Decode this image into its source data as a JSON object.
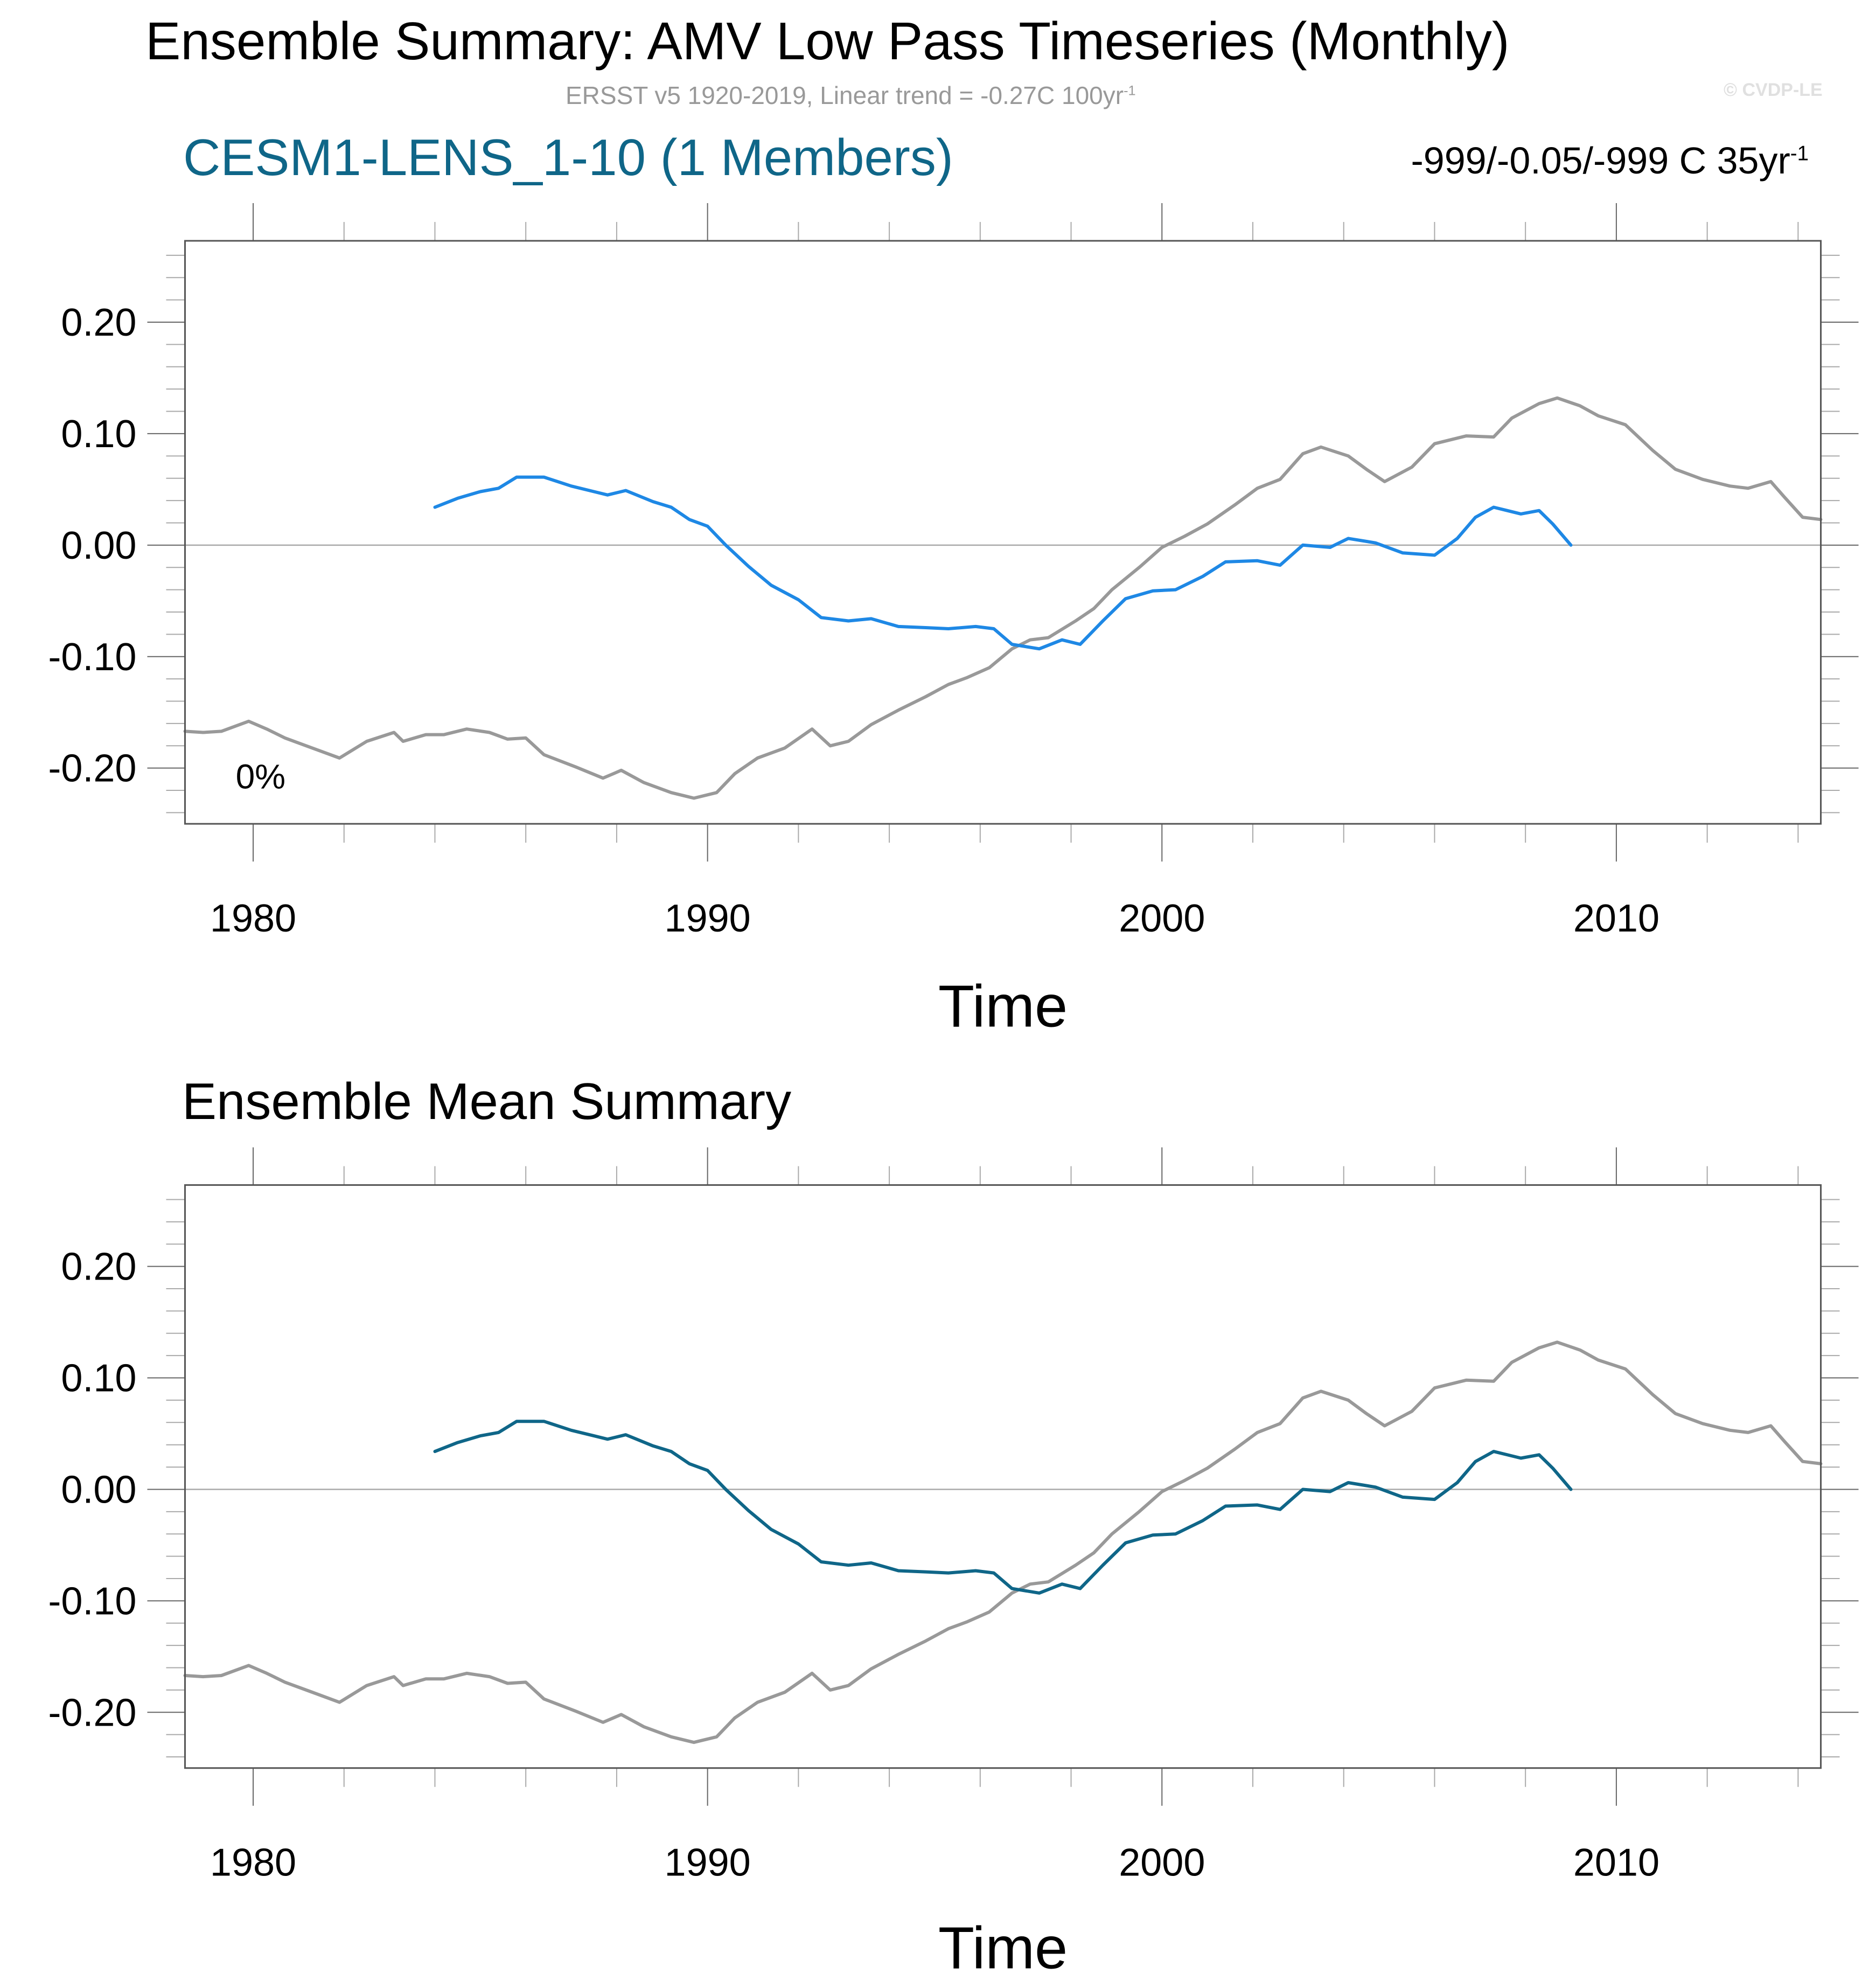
{
  "header": {
    "title": "Ensemble Summary: AMV Low Pass Timeseries (Monthly)",
    "subtitle_main": "ERSST v5 1920-2019, Linear trend = -0.27C 100yr",
    "subtitle_sup": "-1",
    "copyright": "© CVDP-LE"
  },
  "panels": {
    "top": {
      "title": "CESM1-LENS_1-10 (1 Members)",
      "stats_main": "-999/-0.05/-999 C 35yr",
      "stats_sup": "-1",
      "percent_label": "0%"
    },
    "bottom": {
      "title": "Ensemble Mean Summary"
    }
  },
  "colors": {
    "observations": "#999999",
    "model_top": "#1e88e5",
    "model_bottom": "#0f6688",
    "model_title": "#0f6688",
    "zero_line": "#aaaaaa",
    "axis": "#555555"
  },
  "chart_data": [
    {
      "type": "line",
      "title": "CESM1-LENS_1-10 (1 Members)",
      "xlabel": "Time",
      "ylabel": "",
      "xlim": [
        1978.5,
        2014.5
      ],
      "ylim": [
        -0.25,
        0.273
      ],
      "xticks": [
        1980,
        1990,
        2000,
        2010
      ],
      "xtick_labels": [
        "1980",
        "1990",
        "2000",
        "2010"
      ],
      "yticks": [
        0.2,
        0.1,
        0.0,
        -0.1,
        -0.2
      ],
      "ytick_labels": [
        "0.20",
        "0.10",
        "0.00",
        "-0.10",
        "-0.20"
      ],
      "reference_line": 0.0,
      "annotation": "0%",
      "series": [
        {
          "name": "ERSST v5 (observations)",
          "color": "#999999",
          "x": [
            1978.5,
            1978.9,
            1979.3,
            1979.9,
            1980.3,
            1980.7,
            1981.3,
            1981.9,
            1982.5,
            1983.1,
            1983.3,
            1983.8,
            1984.2,
            1984.7,
            1985.2,
            1985.6,
            1986.0,
            1986.4,
            1987.1,
            1987.7,
            1988.1,
            1988.6,
            1989.2,
            1989.7,
            1990.2,
            1990.6,
            1991.1,
            1991.7,
            1992.3,
            1992.7,
            1993.1,
            1993.6,
            1994.2,
            1994.8,
            1995.3,
            1995.7,
            1996.2,
            1996.7,
            1997.1,
            1997.5,
            1998.1,
            1998.5,
            1998.9,
            1999.5,
            2000.0,
            2000.5,
            2001.0,
            2001.6,
            2002.1,
            2002.6,
            2003.1,
            2003.5,
            2004.1,
            2004.5,
            2004.9,
            2005.5,
            2006.0,
            2006.7,
            2007.3,
            2007.7,
            2008.3,
            2008.7,
            2009.2,
            2009.6,
            2010.2,
            2010.8,
            2011.3,
            2011.9,
            2012.5,
            2012.9,
            2013.4,
            2013.7,
            2014.1,
            2014.5
          ],
          "y": [
            -0.167,
            -0.168,
            -0.167,
            -0.158,
            -0.165,
            -0.173,
            -0.182,
            -0.191,
            -0.176,
            -0.168,
            -0.176,
            -0.17,
            -0.17,
            -0.165,
            -0.168,
            -0.174,
            -0.173,
            -0.188,
            -0.199,
            -0.209,
            -0.202,
            -0.213,
            -0.222,
            -0.227,
            -0.222,
            -0.205,
            -0.191,
            -0.182,
            -0.165,
            -0.18,
            -0.176,
            -0.161,
            -0.148,
            -0.136,
            -0.125,
            -0.119,
            -0.11,
            -0.093,
            -0.085,
            -0.083,
            -0.068,
            -0.057,
            -0.04,
            -0.02,
            -0.002,
            0.008,
            0.019,
            0.036,
            0.051,
            0.059,
            0.082,
            0.088,
            0.08,
            0.068,
            0.057,
            0.07,
            0.091,
            0.098,
            0.097,
            0.114,
            0.127,
            0.132,
            0.125,
            0.116,
            0.108,
            0.085,
            0.068,
            0.059,
            0.053,
            0.051,
            0.057,
            0.043,
            0.025,
            0.023
          ]
        },
        {
          "name": "CESM1-LENS_1-10",
          "color": "#1e88e5",
          "x": [
            1984.0,
            1984.5,
            1985.0,
            1985.4,
            1985.8,
            1986.4,
            1987.0,
            1987.5,
            1987.8,
            1988.2,
            1988.8,
            1989.2,
            1989.6,
            1990.0,
            1990.4,
            1990.9,
            1991.4,
            1992.0,
            1992.5,
            1993.1,
            1993.6,
            1994.2,
            1994.8,
            1995.3,
            1995.9,
            1996.3,
            1996.7,
            1997.3,
            1997.8,
            1998.2,
            1998.7,
            1999.2,
            1999.8,
            2000.3,
            2000.9,
            2001.4,
            2002.1,
            2002.6,
            2003.1,
            2003.7,
            2004.1,
            2004.7,
            2005.3,
            2006.0,
            2006.5,
            2006.9,
            2007.3,
            2007.9,
            2008.3,
            2008.6,
            2009.0
          ],
          "y": [
            0.034,
            0.042,
            0.048,
            0.051,
            0.061,
            0.061,
            0.053,
            0.048,
            0.045,
            0.049,
            0.039,
            0.034,
            0.023,
            0.017,
            0.0,
            -0.019,
            -0.036,
            -0.049,
            -0.065,
            -0.068,
            -0.066,
            -0.073,
            -0.074,
            -0.075,
            -0.073,
            -0.075,
            -0.089,
            -0.093,
            -0.085,
            -0.089,
            -0.068,
            -0.048,
            -0.041,
            -0.04,
            -0.028,
            -0.015,
            -0.014,
            -0.018,
            0.0,
            -0.002,
            0.006,
            0.002,
            -0.007,
            -0.009,
            0.006,
            0.025,
            0.034,
            0.028,
            0.031,
            0.019,
            0.0
          ]
        }
      ]
    },
    {
      "type": "line",
      "title": "Ensemble Mean Summary",
      "xlabel": "Time",
      "ylabel": "",
      "xlim": [
        1978.5,
        2014.5
      ],
      "ylim": [
        -0.25,
        0.273
      ],
      "xticks": [
        1980,
        1990,
        2000,
        2010
      ],
      "xtick_labels": [
        "1980",
        "1990",
        "2000",
        "2010"
      ],
      "yticks": [
        0.2,
        0.1,
        0.0,
        -0.1,
        -0.2
      ],
      "ytick_labels": [
        "0.20",
        "0.10",
        "0.00",
        "-0.10",
        "-0.20"
      ],
      "reference_line": 0.0,
      "series": [
        {
          "name": "ERSST v5 (observations)",
          "color": "#999999",
          "x": [
            1978.5,
            1978.9,
            1979.3,
            1979.9,
            1980.3,
            1980.7,
            1981.3,
            1981.9,
            1982.5,
            1983.1,
            1983.3,
            1983.8,
            1984.2,
            1984.7,
            1985.2,
            1985.6,
            1986.0,
            1986.4,
            1987.1,
            1987.7,
            1988.1,
            1988.6,
            1989.2,
            1989.7,
            1990.2,
            1990.6,
            1991.1,
            1991.7,
            1992.3,
            1992.7,
            1993.1,
            1993.6,
            1994.2,
            1994.8,
            1995.3,
            1995.7,
            1996.2,
            1996.7,
            1997.1,
            1997.5,
            1998.1,
            1998.5,
            1998.9,
            1999.5,
            2000.0,
            2000.5,
            2001.0,
            2001.6,
            2002.1,
            2002.6,
            2003.1,
            2003.5,
            2004.1,
            2004.5,
            2004.9,
            2005.5,
            2006.0,
            2006.7,
            2007.3,
            2007.7,
            2008.3,
            2008.7,
            2009.2,
            2009.6,
            2010.2,
            2010.8,
            2011.3,
            2011.9,
            2012.5,
            2012.9,
            2013.4,
            2013.7,
            2014.1,
            2014.5
          ],
          "y": [
            -0.167,
            -0.168,
            -0.167,
            -0.158,
            -0.165,
            -0.173,
            -0.182,
            -0.191,
            -0.176,
            -0.168,
            -0.176,
            -0.17,
            -0.17,
            -0.165,
            -0.168,
            -0.174,
            -0.173,
            -0.188,
            -0.199,
            -0.209,
            -0.202,
            -0.213,
            -0.222,
            -0.227,
            -0.222,
            -0.205,
            -0.191,
            -0.182,
            -0.165,
            -0.18,
            -0.176,
            -0.161,
            -0.148,
            -0.136,
            -0.125,
            -0.119,
            -0.11,
            -0.093,
            -0.085,
            -0.083,
            -0.068,
            -0.057,
            -0.04,
            -0.02,
            -0.002,
            0.008,
            0.019,
            0.036,
            0.051,
            0.059,
            0.082,
            0.088,
            0.08,
            0.068,
            0.057,
            0.07,
            0.091,
            0.098,
            0.097,
            0.114,
            0.127,
            0.132,
            0.125,
            0.116,
            0.108,
            0.085,
            0.068,
            0.059,
            0.053,
            0.051,
            0.057,
            0.043,
            0.025,
            0.023
          ]
        },
        {
          "name": "Ensemble Mean",
          "color": "#0f6688",
          "x": [
            1984.0,
            1984.5,
            1985.0,
            1985.4,
            1985.8,
            1986.4,
            1987.0,
            1987.5,
            1987.8,
            1988.2,
            1988.8,
            1989.2,
            1989.6,
            1990.0,
            1990.4,
            1990.9,
            1991.4,
            1992.0,
            1992.5,
            1993.1,
            1993.6,
            1994.2,
            1994.8,
            1995.3,
            1995.9,
            1996.3,
            1996.7,
            1997.3,
            1997.8,
            1998.2,
            1998.7,
            1999.2,
            1999.8,
            2000.3,
            2000.9,
            2001.4,
            2002.1,
            2002.6,
            2003.1,
            2003.7,
            2004.1,
            2004.7,
            2005.3,
            2006.0,
            2006.5,
            2006.9,
            2007.3,
            2007.9,
            2008.3,
            2008.6,
            2009.0
          ],
          "y": [
            0.034,
            0.042,
            0.048,
            0.051,
            0.061,
            0.061,
            0.053,
            0.048,
            0.045,
            0.049,
            0.039,
            0.034,
            0.023,
            0.017,
            0.0,
            -0.019,
            -0.036,
            -0.049,
            -0.065,
            -0.068,
            -0.066,
            -0.073,
            -0.074,
            -0.075,
            -0.073,
            -0.075,
            -0.089,
            -0.093,
            -0.085,
            -0.089,
            -0.068,
            -0.048,
            -0.041,
            -0.04,
            -0.028,
            -0.015,
            -0.014,
            -0.018,
            0.0,
            -0.002,
            0.006,
            0.002,
            -0.007,
            -0.009,
            0.006,
            0.025,
            0.034,
            0.028,
            0.031,
            0.019,
            0.0
          ]
        }
      ]
    }
  ]
}
